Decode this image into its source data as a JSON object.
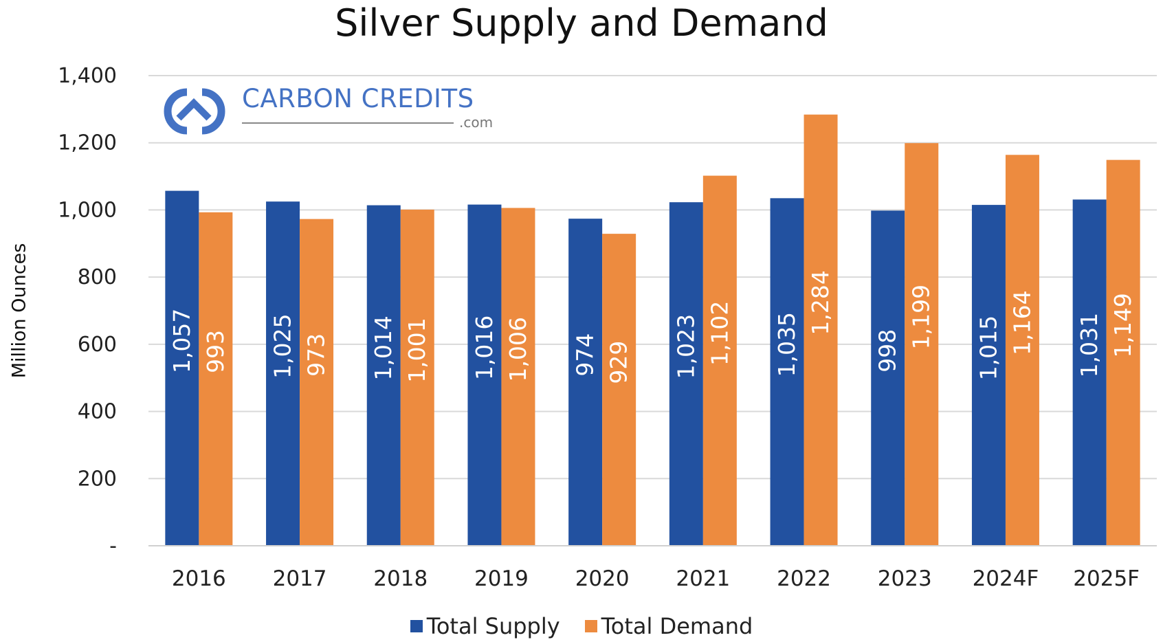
{
  "chart_data": {
    "type": "bar",
    "title": "Silver Supply and Demand",
    "xlabel": "",
    "ylabel": "Million Ounces",
    "ylim": [
      0,
      1400
    ],
    "yticks": [
      0,
      200,
      400,
      600,
      800,
      1000,
      1200,
      1400
    ],
    "ytick_labels": [
      "-",
      "200",
      "400",
      "600",
      "800",
      "1,000",
      "1,200",
      "1,400"
    ],
    "grid": true,
    "legend_position": "bottom",
    "categories": [
      "2016",
      "2017",
      "2018",
      "2019",
      "2020",
      "2021",
      "2022",
      "2023",
      "2024F",
      "2025F"
    ],
    "series": [
      {
        "name": "Total Supply",
        "color": "#2251A0",
        "label_color": "#FFFFFF",
        "values": [
          1057,
          1025,
          1014,
          1016,
          974,
          1023,
          1035,
          998,
          1015,
          1031
        ],
        "labels": [
          "1,057",
          "1,025",
          "1,014",
          "1,016",
          "974",
          "1,023",
          "1,035",
          "998",
          "1,015",
          "1,031"
        ]
      },
      {
        "name": "Total Demand",
        "color": "#ED8B3F",
        "label_color": "#FFFFFF",
        "values": [
          993,
          973,
          1001,
          1006,
          929,
          1102,
          1284,
          1199,
          1164,
          1149
        ],
        "labels": [
          "993",
          "973",
          "1,001",
          "1,006",
          "929",
          "1,102",
          "1,284",
          "1,199",
          "1,164",
          "1,149"
        ]
      }
    ]
  },
  "watermark": {
    "text": "CARBON CREDITS",
    "suffix": ".com",
    "color": "#4472C4"
  }
}
